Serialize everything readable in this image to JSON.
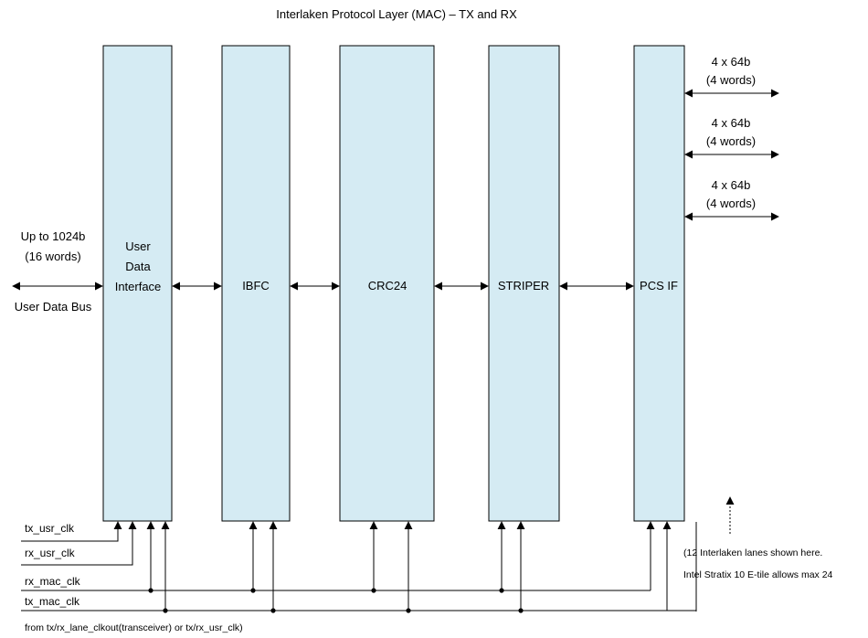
{
  "title": "Interlaken Protocol Layer (MAC) – TX and RX",
  "blocks": [
    {
      "id": "udi",
      "lines": [
        "User",
        "Data",
        "Interface"
      ]
    },
    {
      "id": "ibfc",
      "lines": [
        "IBFC"
      ]
    },
    {
      "id": "crc24",
      "lines": [
        "CRC24"
      ]
    },
    {
      "id": "striper",
      "lines": [
        "STRIPER"
      ]
    },
    {
      "id": "pcsif",
      "lines": [
        "PCS IF"
      ]
    }
  ],
  "user_bus": {
    "width_line1": "Up to 1024b",
    "width_line2": "(16 words)",
    "name": "User Data Bus"
  },
  "lanes": [
    {
      "line1": "4 x 64b",
      "line2": "(4 words)"
    },
    {
      "line1": "4 x 64b",
      "line2": "(4 words)"
    },
    {
      "line1": "4 x 64b",
      "line2": "(4 words)"
    }
  ],
  "lanes_note": {
    "line1": "(12 Interlaken lanes shown here.",
    "line2": "Intel Stratix 10 E-tile allows max 24"
  },
  "clocks": {
    "tx_usr_clk": "tx_usr_clk",
    "rx_usr_clk": "rx_usr_clk",
    "rx_mac_clk": "rx_mac_clk",
    "tx_mac_clk": "tx_mac_clk",
    "source_note": "from tx/rx_lane_clkout(transceiver) or tx/rx_usr_clk)"
  }
}
